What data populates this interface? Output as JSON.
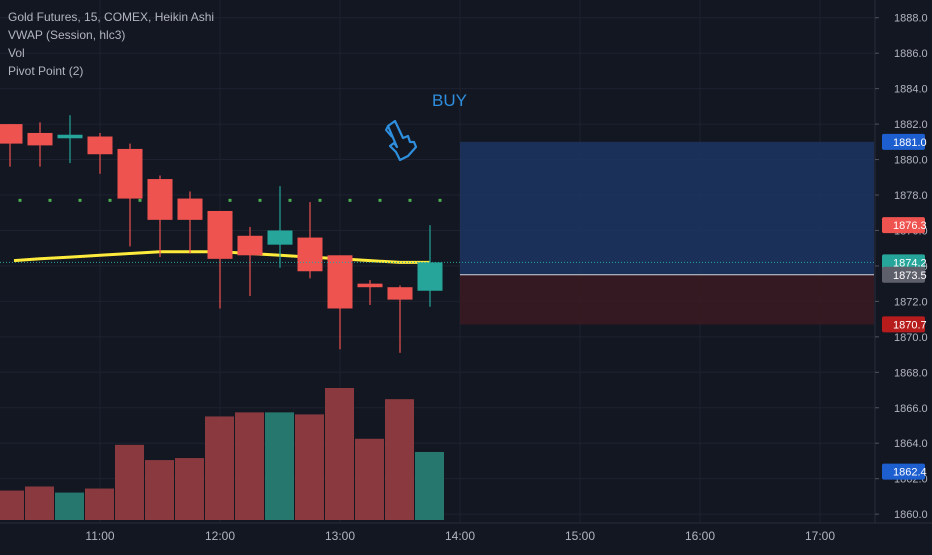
{
  "legend": {
    "line1": "Gold Futures, 15, COMEX, Heikin Ashi",
    "line2": "VWAP (Session, hlc3)",
    "line3": "Vol",
    "line4": "Pivot Point (2)"
  },
  "annotation": {
    "buy_text": "BUY",
    "pointer_icon": "pointing-hand-icon"
  },
  "colors": {
    "background": "#131722",
    "grid": "#1e2230",
    "up": "#26a69a",
    "down": "#ef5350",
    "vwap": "#ffeb3b",
    "pivot": "#4caf50",
    "target_zone": "#1c3561",
    "stop_zone": "#3a1a22",
    "axis_text": "#b2b5be"
  },
  "price_badges": [
    {
      "price": 1881.0,
      "label": "1881.0",
      "bg": "#1e5fcf",
      "fg": "#ffffff"
    },
    {
      "price": 1876.3,
      "label": "1876.3",
      "bg": "#ef5350",
      "fg": "#ffffff"
    },
    {
      "price": 1874.2,
      "label": "1874.2",
      "bg": "#26a69a",
      "fg": "#ffffff"
    },
    {
      "price": 1873.5,
      "label": "1873.5",
      "bg": "#5d606b",
      "fg": "#ffffff"
    },
    {
      "price": 1870.7,
      "label": "1870.7",
      "bg": "#b71c1c",
      "fg": "#ffffff"
    },
    {
      "price": 1862.4,
      "label": "1862.4",
      "bg": "#1e5fcf",
      "fg": "#ffffff"
    }
  ],
  "chart_data": {
    "type": "candlestick",
    "title": "Gold Futures, 15, COMEX, Heikin Ashi",
    "y_ticks": [
      1860.0,
      1862.0,
      1864.0,
      1866.0,
      1868.0,
      1870.0,
      1872.0,
      1874.0,
      1876.0,
      1878.0,
      1880.0,
      1882.0,
      1884.0,
      1886.0,
      1888.0
    ],
    "y_tick_labels": [
      "1860.0",
      "1862.0",
      "1864.0",
      "1866.0",
      "1868.0",
      "1870.0",
      "1872.0",
      "1874.0",
      "1876.0",
      "1878.0",
      "1880.0",
      "1882.0",
      "1884.0",
      "1886.0",
      "1888.0"
    ],
    "ylim": [
      1859.5,
      1889.0
    ],
    "x_tick_labels": [
      "11:00",
      "12:00",
      "13:00",
      "14:00",
      "15:00",
      "16:00",
      "17:00"
    ],
    "x_tick_times": [
      "11:00",
      "12:00",
      "13:00",
      "14:00",
      "15:00",
      "16:00",
      "17:00"
    ],
    "candles": [
      {
        "time": "10:15",
        "open": 1882.0,
        "high": 1882.0,
        "low": 1879.6,
        "close": 1880.9,
        "dir": "down"
      },
      {
        "time": "10:30",
        "open": 1881.5,
        "high": 1882.1,
        "low": 1879.6,
        "close": 1880.8,
        "dir": "down"
      },
      {
        "time": "10:45",
        "open": 1881.2,
        "high": 1882.5,
        "low": 1879.8,
        "close": 1881.4,
        "dir": "up"
      },
      {
        "time": "11:00",
        "open": 1881.3,
        "high": 1881.5,
        "low": 1879.2,
        "close": 1880.3,
        "dir": "down"
      },
      {
        "time": "11:15",
        "open": 1880.6,
        "high": 1880.9,
        "low": 1875.1,
        "close": 1877.8,
        "dir": "down"
      },
      {
        "time": "11:30",
        "open": 1878.9,
        "high": 1879.1,
        "low": 1874.5,
        "close": 1876.6,
        "dir": "down"
      },
      {
        "time": "11:45",
        "open": 1877.8,
        "high": 1878.2,
        "low": 1874.7,
        "close": 1876.6,
        "dir": "down"
      },
      {
        "time": "12:00",
        "open": 1877.1,
        "high": 1877.1,
        "low": 1871.6,
        "close": 1874.4,
        "dir": "down"
      },
      {
        "time": "12:15",
        "open": 1875.7,
        "high": 1876.2,
        "low": 1872.3,
        "close": 1874.6,
        "dir": "down"
      },
      {
        "time": "12:30",
        "open": 1875.2,
        "high": 1878.5,
        "low": 1873.9,
        "close": 1876.0,
        "dir": "up"
      },
      {
        "time": "12:45",
        "open": 1875.6,
        "high": 1877.6,
        "low": 1873.3,
        "close": 1873.7,
        "dir": "down"
      },
      {
        "time": "13:00",
        "open": 1874.6,
        "high": 1874.6,
        "low": 1869.3,
        "close": 1871.6,
        "dir": "down"
      },
      {
        "time": "13:15",
        "open": 1873.0,
        "high": 1873.2,
        "low": 1871.8,
        "close": 1872.8,
        "dir": "down"
      },
      {
        "time": "13:30",
        "open": 1872.8,
        "high": 1872.9,
        "low": 1869.1,
        "close": 1872.1,
        "dir": "down"
      },
      {
        "time": "13:45",
        "open": 1872.6,
        "high": 1876.3,
        "low": 1871.7,
        "close": 1874.2,
        "dir": "up"
      }
    ],
    "vwap": [
      1874.3,
      1874.4,
      1874.5,
      1874.6,
      1874.7,
      1874.8,
      1874.8,
      1874.8,
      1874.7,
      1874.6,
      1874.5,
      1874.4,
      1874.3,
      1874.2,
      1874.2
    ],
    "pivot_dots_price": 1877.7,
    "pivot_dot_times": [
      "10:05",
      "10:20",
      "10:35",
      "10:50",
      "11:05",
      "11:20",
      "11:35",
      "11:50",
      "12:05",
      "12:20",
      "12:35",
      "12:50",
      "13:05",
      "13:20",
      "13:35",
      "13:50"
    ],
    "volume": [
      {
        "time": "10:15",
        "value": 29,
        "dir": "down"
      },
      {
        "time": "10:30",
        "value": 33,
        "dir": "down"
      },
      {
        "time": "10:45",
        "value": 27,
        "dir": "up"
      },
      {
        "time": "11:00",
        "value": 31,
        "dir": "down"
      },
      {
        "time": "11:15",
        "value": 74,
        "dir": "down"
      },
      {
        "time": "11:30",
        "value": 59,
        "dir": "down"
      },
      {
        "time": "11:45",
        "value": 61,
        "dir": "down"
      },
      {
        "time": "12:00",
        "value": 102,
        "dir": "down"
      },
      {
        "time": "12:15",
        "value": 106,
        "dir": "down"
      },
      {
        "time": "12:30",
        "value": 106,
        "dir": "up"
      },
      {
        "time": "12:45",
        "value": 104,
        "dir": "down"
      },
      {
        "time": "13:00",
        "value": 130,
        "dir": "down"
      },
      {
        "time": "13:15",
        "value": 80,
        "dir": "down"
      },
      {
        "time": "13:30",
        "value": 119,
        "dir": "down"
      },
      {
        "time": "13:45",
        "value": 67,
        "dir": "up"
      }
    ],
    "volume_max": 130,
    "position": {
      "start_time": "14:00",
      "entry": 1873.5,
      "target": 1881.0,
      "stop": 1870.7
    },
    "last_price": 1874.2
  }
}
